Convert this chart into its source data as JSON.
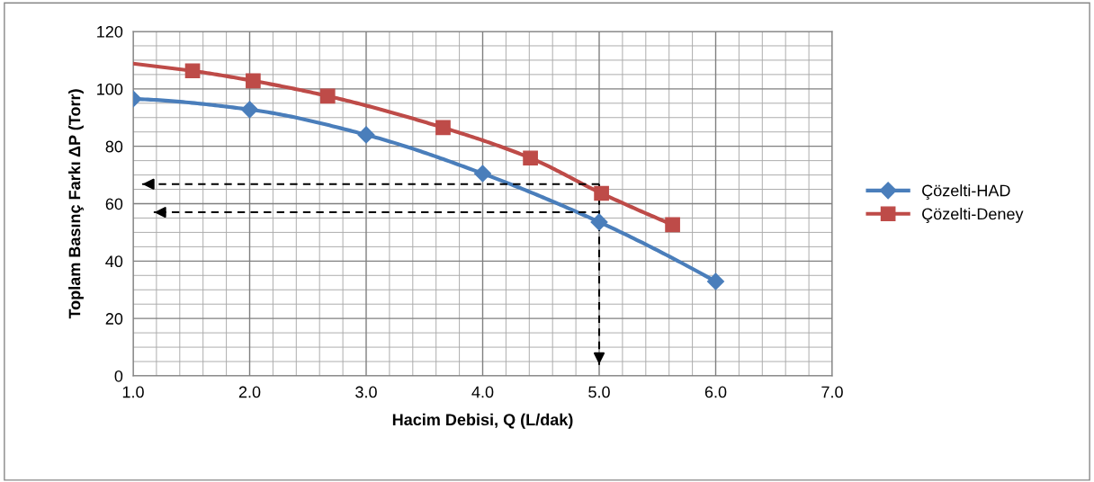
{
  "chart_data": {
    "type": "line",
    "xlabel": "Hacim Debisi, Q (L/dak)",
    "ylabel": "Toplam Basınç Farkı ΔP (Torr)",
    "xlim": [
      1.0,
      7.0
    ],
    "xticks": [
      {
        "value": 1,
        "label": "1.0"
      },
      {
        "value": 2,
        "label": "2.0"
      },
      {
        "value": 3,
        "label": "3.0"
      },
      {
        "value": 4,
        "label": "4.0"
      },
      {
        "value": 5,
        "label": "5.0"
      },
      {
        "value": 6,
        "label": "6.0"
      },
      {
        "value": 7,
        "label": "7.0"
      }
    ],
    "ylim": [
      0,
      120
    ],
    "yticks": [
      0,
      20,
      40,
      60,
      80,
      100,
      120
    ],
    "grid": true,
    "legend": "right",
    "series": [
      {
        "name": "Çözelti-HAD",
        "color": "#4a7ebb",
        "marker": "diamond",
        "x": [
          1.0,
          2.0,
          3.0,
          4.0,
          5.0,
          6.0
        ],
        "values": [
          96.5,
          92.8,
          84,
          70.5,
          53.6,
          32.9
        ]
      },
      {
        "name": "Çözelti-Deney",
        "color": "#be4b48",
        "marker": "square",
        "x": [
          1.51,
          2.03,
          2.67,
          3.66,
          4.41,
          5.02,
          5.63
        ],
        "values": [
          106.3,
          102.8,
          97.5,
          86.5,
          75.9,
          63.6,
          52.7
        ]
      },
      {
        "color": "#be4b48",
        "marker": "none",
        "x": [
          1.0,
          1.51
        ],
        "values": [
          108.8,
          106.3
        ]
      },
      {
        "color": "#000000",
        "marker": "none",
        "line_style": "dashed",
        "x": [
          5.0,
          1.08
        ],
        "values": [
          66.8,
          66.8
        ]
      },
      {
        "color": "#000000",
        "marker": "none",
        "line_style": "dashed",
        "x": [
          5.0,
          1.18
        ],
        "values": [
          57,
          57
        ]
      },
      {
        "color": "#000000",
        "marker": "none",
        "line_style": "dashed",
        "x": [
          5.0,
          5.0
        ],
        "values": [
          66.8,
          4
        ]
      }
    ]
  }
}
